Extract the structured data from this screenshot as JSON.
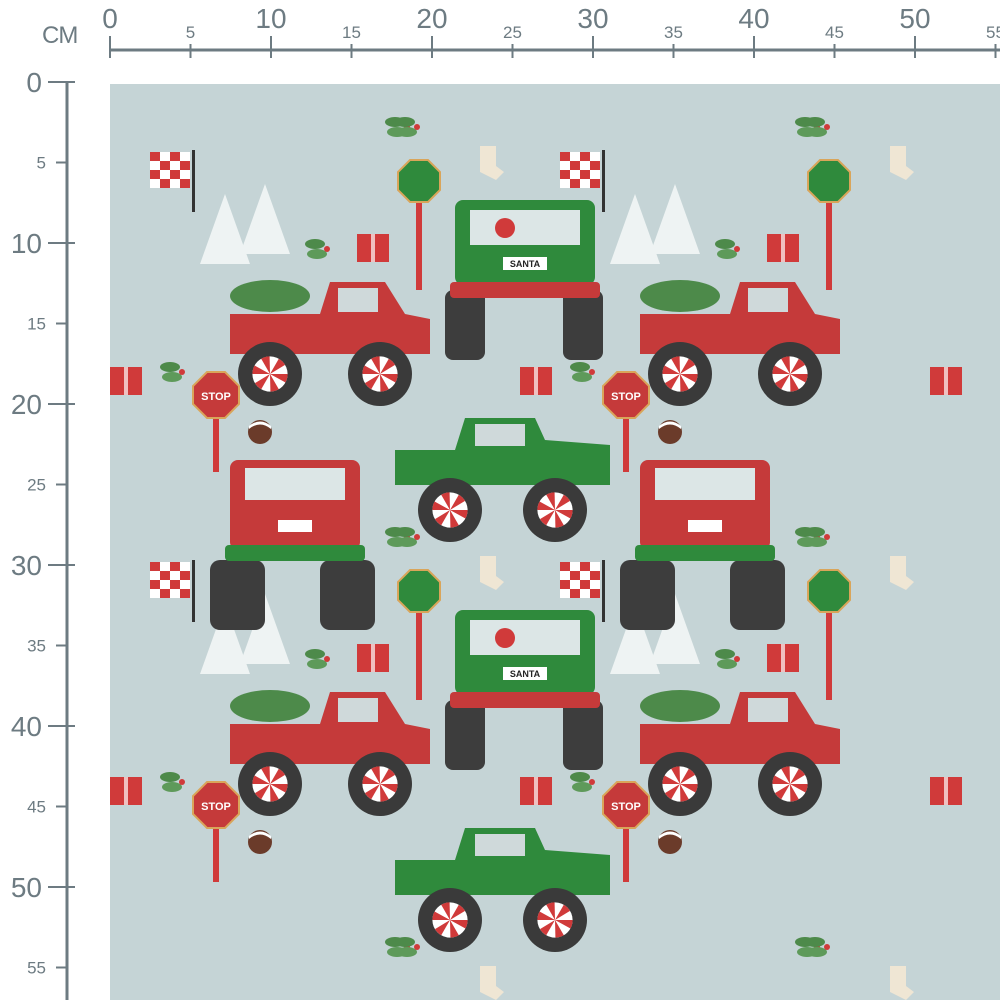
{
  "ruler": {
    "unit": "CM",
    "horizontal_labels": [
      "0",
      "5",
      "10",
      "15",
      "20",
      "25",
      "30",
      "35",
      "40",
      "45",
      "50",
      "55"
    ],
    "vertical_labels": [
      "0",
      "5",
      "10",
      "15",
      "20",
      "25",
      "30",
      "35",
      "40",
      "45",
      "50",
      "55"
    ],
    "color": "#6d7b82"
  },
  "fabric": {
    "background_color": "#c5d4d6",
    "motifs": [
      "red-pickup-truck-with-tree",
      "green-monster-truck-santa",
      "red-monster-truck",
      "green-pickup-truck",
      "stop-sign",
      "checkered-flag",
      "green-road-sign",
      "white-christmas-tree",
      "gift-box",
      "christmas-pudding",
      "stocking",
      "holly-sprig",
      "peppermint-wheel"
    ],
    "stop_sign_text": "STOP",
    "plate_text_green": "SANTA"
  }
}
